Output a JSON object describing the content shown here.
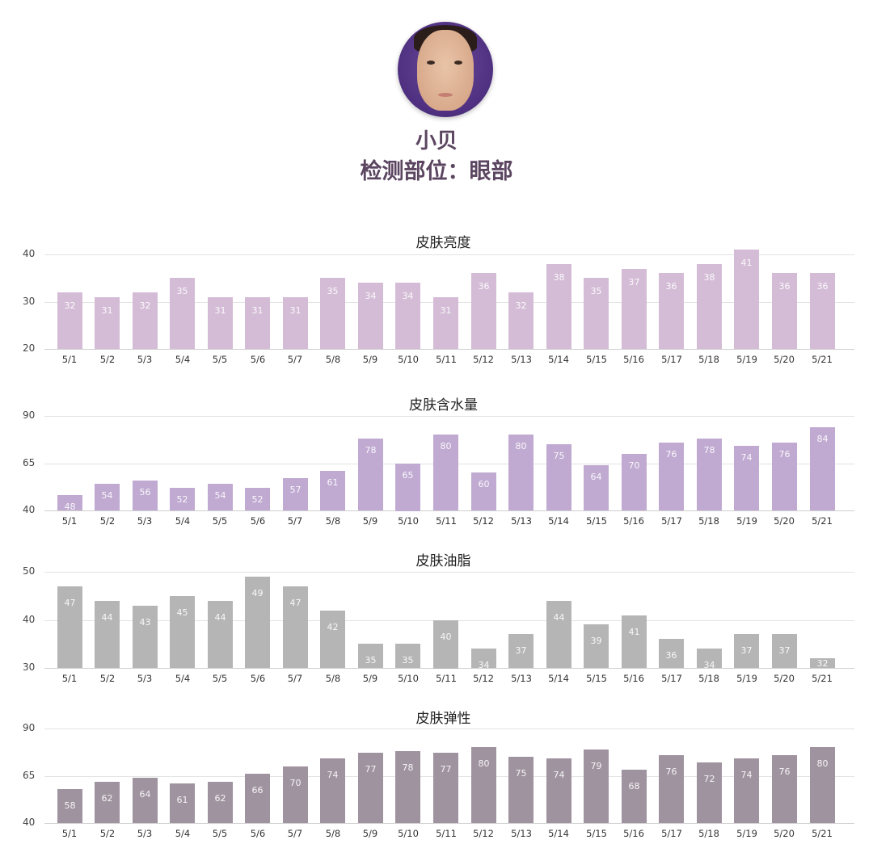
{
  "profile": {
    "name": "小贝",
    "detection_area": "检测部位：眼部",
    "avatar_icon": "person-portrait"
  },
  "colors": {
    "brightness_bar": "#d4bcd6",
    "moisture_bar": "#c0aad1",
    "oil_bar": "#b5b5b5",
    "elasticity_bar": "#9f939f",
    "title_text": "#5b4560"
  },
  "chart_data": [
    {
      "type": "bar",
      "title": "皮肤亮度",
      "categories": [
        "5/1",
        "5/2",
        "5/3",
        "5/4",
        "5/5",
        "5/6",
        "5/7",
        "5/8",
        "5/9",
        "5/10",
        "5/11",
        "5/12",
        "5/13",
        "5/14",
        "5/15",
        "5/16",
        "5/17",
        "5/18",
        "5/19",
        "5/20",
        "5/21"
      ],
      "values": [
        32,
        31,
        32,
        35,
        31,
        31,
        31,
        35,
        34,
        34,
        31,
        36,
        32,
        38,
        35,
        37,
        36,
        38,
        41,
        36,
        36
      ],
      "yticks": [
        20,
        30,
        40
      ],
      "ylim": [
        20,
        40
      ],
      "grid": true,
      "data_labels": true,
      "xlabel": "",
      "ylabel": ""
    },
    {
      "type": "bar",
      "title": "皮肤含水量",
      "categories": [
        "5/1",
        "5/2",
        "5/3",
        "5/4",
        "5/5",
        "5/6",
        "5/7",
        "5/8",
        "5/9",
        "5/10",
        "5/11",
        "5/12",
        "5/13",
        "5/14",
        "5/15",
        "5/16",
        "5/17",
        "5/18",
        "5/19",
        "5/20",
        "5/21"
      ],
      "values": [
        48,
        54,
        56,
        52,
        54,
        52,
        57,
        61,
        78,
        65,
        80,
        60,
        80,
        75,
        64,
        70,
        76,
        78,
        74,
        76,
        84
      ],
      "yticks": [
        40,
        65,
        90
      ],
      "ylim": [
        40,
        90
      ],
      "grid": true,
      "data_labels": true,
      "xlabel": "",
      "ylabel": ""
    },
    {
      "type": "bar",
      "title": "皮肤油脂",
      "categories": [
        "5/1",
        "5/2",
        "5/3",
        "5/4",
        "5/5",
        "5/6",
        "5/7",
        "5/8",
        "5/9",
        "5/10",
        "5/11",
        "5/12",
        "5/13",
        "5/14",
        "5/15",
        "5/16",
        "5/17",
        "5/18",
        "5/19",
        "5/20",
        "5/21"
      ],
      "values": [
        47,
        44,
        43,
        45,
        44,
        49,
        47,
        42,
        35,
        35,
        40,
        34,
        37,
        44,
        39,
        41,
        36,
        34,
        37,
        37,
        32
      ],
      "yticks": [
        30,
        40,
        50
      ],
      "ylim": [
        30,
        50
      ],
      "grid": true,
      "data_labels": true,
      "xlabel": "",
      "ylabel": ""
    },
    {
      "type": "bar",
      "title": "皮肤弹性",
      "categories": [
        "5/1",
        "5/2",
        "5/3",
        "5/4",
        "5/5",
        "5/6",
        "5/7",
        "5/8",
        "5/9",
        "5/10",
        "5/11",
        "5/12",
        "5/13",
        "5/14",
        "5/15",
        "5/16",
        "5/17",
        "5/18",
        "5/19",
        "5/20",
        "5/21"
      ],
      "values": [
        58,
        62,
        64,
        61,
        62,
        66,
        70,
        74,
        77,
        78,
        77,
        80,
        75,
        74,
        79,
        68,
        76,
        72,
        74,
        76,
        80
      ],
      "yticks": [
        40,
        65,
        90
      ],
      "ylim": [
        40,
        90
      ],
      "grid": true,
      "data_labels": true,
      "xlabel": "",
      "ylabel": ""
    }
  ]
}
